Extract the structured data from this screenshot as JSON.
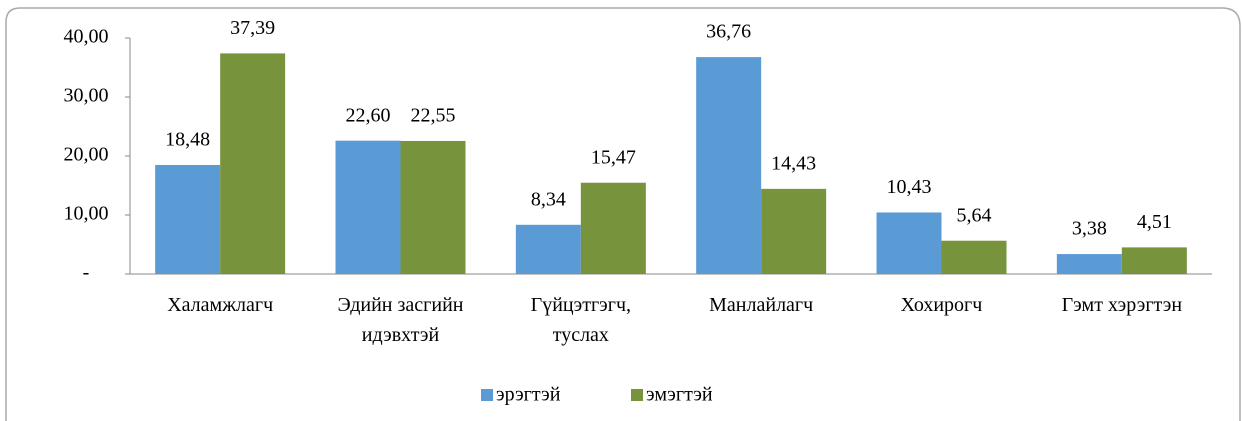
{
  "chart_data": {
    "type": "bar",
    "categories": [
      "Халамжлагч",
      "Эдийн засгийн идэвхтэй",
      "Гүйцэтгэгч, туслах",
      "Манлайлагч",
      "Хохирогч",
      "Гэмт хэрэгтэн"
    ],
    "series": [
      {
        "name": "эрэгтэй",
        "color": "#5b9bd5",
        "values": [
          18.48,
          22.6,
          8.34,
          36.76,
          10.43,
          3.38
        ],
        "value_labels": [
          "18,48",
          "22,60",
          "8,34",
          "36,76",
          "10,43",
          "3,38"
        ]
      },
      {
        "name": "эмэгтэй",
        "color": "#77933c",
        "values": [
          37.39,
          22.55,
          15.47,
          14.43,
          5.64,
          4.51
        ],
        "value_labels": [
          "37,39",
          "22,55",
          "15,47",
          "14,43",
          "5,64",
          "4,51"
        ]
      }
    ],
    "ylim": [
      0,
      40
    ],
    "yticks": [
      {
        "value": 0,
        "label": "-"
      },
      {
        "value": 10,
        "label": "10,00"
      },
      {
        "value": 20,
        "label": "20,00"
      },
      {
        "value": 30,
        "label": "30,00"
      },
      {
        "value": 40,
        "label": "40,00"
      }
    ],
    "legend": "bottom"
  }
}
